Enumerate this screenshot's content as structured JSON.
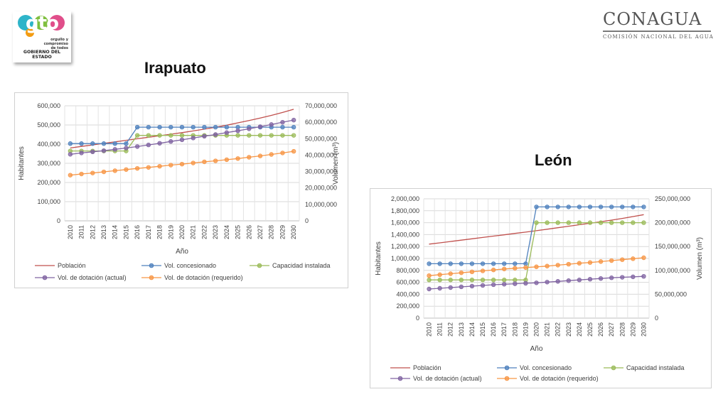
{
  "logo_gto": {
    "main": "gto",
    "tagline": "orgullo y compromiso de todos",
    "government": "GOBIERNO DEL ESTADO",
    "colors": [
      "#f39c12",
      "#2eb4c9",
      "#e04e8a",
      "#7fbf3f"
    ]
  },
  "logo_conagua": {
    "name": "CONAGUA",
    "subtitle": "COMISIÓN NACIONAL DEL AGUA"
  },
  "chart_data": [
    {
      "type": "line",
      "title": "Irapuato",
      "xlabel": "Año",
      "ylabel": "Habitantes",
      "y2label": "Volumen (m³)",
      "x": [
        "2010",
        "2011",
        "2012",
        "2013",
        "2014",
        "2015",
        "2016",
        "2017",
        "2018",
        "2019",
        "2020",
        "2021",
        "2022",
        "2023",
        "2024",
        "2025",
        "2026",
        "2027",
        "2028",
        "2029",
        "2030"
      ],
      "ylim": [
        0,
        600000
      ],
      "y_ticks": [
        "0",
        "100,000",
        "200,000",
        "300,000",
        "400,000",
        "500,000",
        "600,000"
      ],
      "y2lim": [
        0,
        70000000
      ],
      "y2_ticks": [
        "0",
        "10,000,000",
        "20,000,000",
        "30,000,000",
        "40,000,000",
        "50,000,000",
        "60,000,000",
        "70,000,000"
      ],
      "grid": true,
      "legend_position": "bottom",
      "series": [
        {
          "name": "Población",
          "axis": "left",
          "color": "#c0504d",
          "marker": false,
          "values": [
            380000,
            388000,
            396000,
            404000,
            412000,
            420000,
            428000,
            436000,
            444000,
            452000,
            460000,
            469000,
            478000,
            488000,
            499000,
            511000,
            523000,
            536000,
            550000,
            565000,
            582000
          ]
        },
        {
          "name": "Vol. concesionado",
          "axis": "right",
          "color": "#4f81bd",
          "marker": true,
          "values": [
            47000000,
            47000000,
            47000000,
            47000000,
            47000000,
            47000000,
            57000000,
            57000000,
            57000000,
            57000000,
            57000000,
            57000000,
            57000000,
            57000000,
            57000000,
            57000000,
            57000000,
            57000000,
            57000000,
            57000000,
            57000000
          ]
        },
        {
          "name": "Capacidad instalada",
          "axis": "right",
          "color": "#9bbb59",
          "marker": true,
          "values": [
            42500000,
            42500000,
            42500000,
            42500000,
            42500000,
            42500000,
            52000000,
            52000000,
            52000000,
            52000000,
            52000000,
            52000000,
            52000000,
            52000000,
            52000000,
            52000000,
            52000000,
            52000000,
            52000000,
            52000000,
            52000000
          ]
        },
        {
          "name": "Vol. de dotación (actual)",
          "axis": "right",
          "color": "#8064a2",
          "marker": true,
          "values": [
            40500000,
            41300000,
            42000000,
            42700000,
            43500000,
            44300000,
            45200000,
            46200000,
            47200000,
            48300000,
            49300000,
            50400000,
            51500000,
            52500000,
            53700000,
            54800000,
            56000000,
            57300000,
            58600000,
            60000000,
            61300000
          ]
        },
        {
          "name": "Vol. de dotación (requerido)",
          "axis": "right",
          "color": "#f79646",
          "marker": true,
          "values": [
            27800000,
            28500000,
            29100000,
            29800000,
            30500000,
            31200000,
            31900000,
            32500000,
            33200000,
            33900000,
            34500000,
            35200000,
            35900000,
            36500000,
            37200000,
            37900000,
            38700000,
            39500000,
            40400000,
            41300000,
            42300000
          ]
        }
      ]
    },
    {
      "type": "line",
      "title": "León",
      "xlabel": "Año",
      "ylabel": "Habitantes",
      "y2label": "Volumen (m³)",
      "x": [
        "2010",
        "2011",
        "2012",
        "2013",
        "2014",
        "2015",
        "2016",
        "2017",
        "2018",
        "2019",
        "2020",
        "2021",
        "2022",
        "2023",
        "2024",
        "2025",
        "2026",
        "2027",
        "2028",
        "2029",
        "2030"
      ],
      "ylim": [
        0,
        2000000
      ],
      "y_ticks": [
        "0",
        "200,000",
        "400,000",
        "600,000",
        "800,000",
        "1,000,000",
        "1,200,000",
        "1,400,000",
        "1,600,000",
        "1,800,000",
        "2,000,000"
      ],
      "y2lim": [
        0,
        250000000
      ],
      "y2_ticks": [
        "0",
        "50,000,000",
        "100,000,000",
        "150,000,000",
        "200,000,000",
        "250,000,000"
      ],
      "grid": true,
      "legend_position": "bottom",
      "series": [
        {
          "name": "Población",
          "axis": "left",
          "color": "#c0504d",
          "marker": false,
          "values": [
            1240000,
            1262000,
            1285000,
            1307000,
            1330000,
            1352000,
            1375000,
            1397000,
            1420000,
            1442000,
            1465000,
            1490000,
            1515000,
            1540000,
            1565000,
            1590000,
            1615000,
            1643000,
            1672000,
            1702000,
            1735000
          ]
        },
        {
          "name": "Vol. concesionado",
          "axis": "right",
          "color": "#4f81bd",
          "marker": true,
          "values": [
            114000000,
            114000000,
            114000000,
            114000000,
            114000000,
            114000000,
            114000000,
            114000000,
            114000000,
            114000000,
            233000000,
            233000000,
            233000000,
            233000000,
            233000000,
            233000000,
            233000000,
            233000000,
            233000000,
            233000000,
            233000000
          ]
        },
        {
          "name": "Capacidad instalada",
          "axis": "right",
          "color": "#9bbb59",
          "marker": true,
          "values": [
            80000000,
            80000000,
            80000000,
            80000000,
            80000000,
            80000000,
            80000000,
            80000000,
            80000000,
            80000000,
            200000000,
            200000000,
            200000000,
            200000000,
            200000000,
            200000000,
            200000000,
            200000000,
            200000000,
            200000000,
            200000000
          ]
        },
        {
          "name": "Vol. de dotación (actual)",
          "axis": "right",
          "color": "#8064a2",
          "marker": true,
          "values": [
            61000000,
            62500000,
            64000000,
            65500000,
            67000000,
            68500000,
            70000000,
            71000000,
            72000000,
            73000000,
            74000000,
            75500000,
            77000000,
            78500000,
            80000000,
            81500000,
            83000000,
            84500000,
            85500000,
            86500000,
            87500000
          ]
        },
        {
          "name": "Vol. de dotación (requerido)",
          "axis": "right",
          "color": "#f79646",
          "marker": true,
          "values": [
            89000000,
            91000000,
            93000000,
            95000000,
            97000000,
            99000000,
            101000000,
            103000000,
            104500000,
            106000000,
            107500000,
            109000000,
            111000000,
            113000000,
            115000000,
            116500000,
            118500000,
            120500000,
            122500000,
            124500000,
            126500000
          ]
        }
      ]
    }
  ]
}
